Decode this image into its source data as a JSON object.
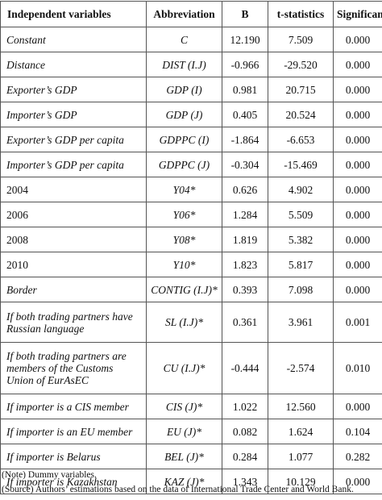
{
  "table": {
    "headers": [
      "Independent variables",
      "Abbreviation",
      "B",
      "t-statistics",
      "Significance"
    ],
    "rows": [
      {
        "variable": "Constant",
        "italic": true,
        "abbr": "C",
        "b": "12.190",
        "t": "7.509",
        "sig": "0.000"
      },
      {
        "variable": "Distance",
        "italic": true,
        "abbr": "DIST (I.J)",
        "b": "-0.966",
        "t": "-29.520",
        "sig": "0.000"
      },
      {
        "variable": "Exporter’s GDP",
        "italic": true,
        "abbr": "GDP (I)",
        "b": "0.981",
        "t": "20.715",
        "sig": "0.000"
      },
      {
        "variable": "Importer’s GDP",
        "italic": true,
        "abbr": "GDP (J)",
        "b": "0.405",
        "t": "20.524",
        "sig": "0.000"
      },
      {
        "variable": "Exporter’s GDP per capita",
        "italic": true,
        "abbr": "GDPPC (I)",
        "b": "-1.864",
        "t": "-6.653",
        "sig": "0.000"
      },
      {
        "variable": "Importer’s GDP per capita",
        "italic": true,
        "abbr": "GDPPC (J)",
        "b": "-0.304",
        "t": "-15.469",
        "sig": "0.000"
      },
      {
        "variable": "2004",
        "italic": false,
        "abbr": "Y04*",
        "b": "0.626",
        "t": "4.902",
        "sig": "0.000"
      },
      {
        "variable": "2006",
        "italic": false,
        "abbr": "Y06*",
        "b": "1.284",
        "t": "5.509",
        "sig": "0.000"
      },
      {
        "variable": "2008",
        "italic": false,
        "abbr": "Y08*",
        "b": "1.819",
        "t": "5.382",
        "sig": "0.000"
      },
      {
        "variable": "2010",
        "italic": false,
        "abbr": "Y10*",
        "b": "1.823",
        "t": "5.817",
        "sig": "0.000"
      },
      {
        "variable": "Border",
        "italic": true,
        "abbr": "CONTIG (I.J)*",
        "b": "0.393",
        "t": "7.098",
        "sig": "0.000"
      },
      {
        "variable": "If both trading partners have Russian language",
        "italic": true,
        "abbr": "SL (I.J)*",
        "b": "0.361",
        "t": "3.961",
        "sig": "0.001"
      },
      {
        "variable": "If both trading partners are members of the Customs Union of EurAsEC",
        "italic": true,
        "abbr": "CU (I.J)*",
        "b": "-0.444",
        "t": "-2.574",
        "sig": "0.010"
      },
      {
        "variable": "If importer is a CIS member",
        "italic": true,
        "abbr": "CIS (J)*",
        "b": "1.022",
        "t": "12.560",
        "sig": "0.000"
      },
      {
        "variable": "If importer is an EU member",
        "italic": true,
        "abbr": "EU (J)*",
        "b": "0.082",
        "t": "1.624",
        "sig": "0.104"
      },
      {
        "variable": "If importer is Belarus",
        "italic": true,
        "abbr": "BEL (J)*",
        "b": "0.284",
        "t": "1.077",
        "sig": "0.282"
      },
      {
        "variable": "If importer is Kazakhstan",
        "italic": true,
        "abbr": "KAZ (J)*",
        "b": "1.343",
        "t": "10.129",
        "sig": "0.000"
      }
    ]
  },
  "notes": {
    "note": "(Note) Dummy variables.",
    "source": "(Source) Authors’ estimations based on the data of International Trade Center and World Bank."
  }
}
